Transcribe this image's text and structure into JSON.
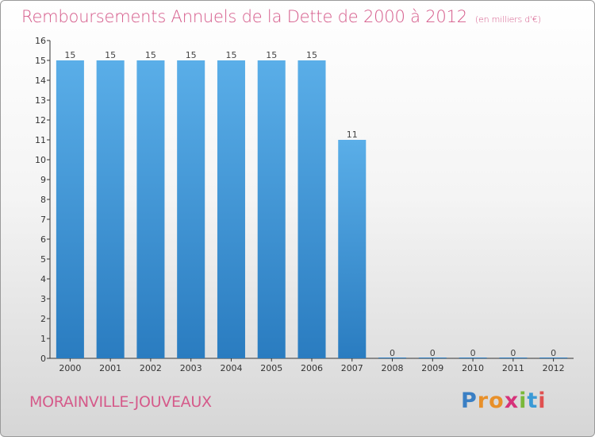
{
  "title": "Remboursements Annuels de la Dette de 2000 à 2012",
  "unit_note": "(en milliers d'€)",
  "commune": "MORAINVILLE-JOUVEAUX",
  "logo": {
    "text": "Proxiti",
    "letters": [
      "P",
      "r",
      "o",
      "x",
      "i",
      "t",
      "i"
    ]
  },
  "colors": {
    "bar_top": "#5aaee8",
    "bar_bottom": "#2a7cc0",
    "title": "#d55a8a"
  },
  "chart_data": {
    "type": "bar",
    "categories": [
      "2000",
      "2001",
      "2002",
      "2003",
      "2004",
      "2005",
      "2006",
      "2007",
      "2008",
      "2009",
      "2010",
      "2011",
      "2012"
    ],
    "values": [
      15,
      15,
      15,
      15,
      15,
      15,
      15,
      11,
      0,
      0,
      0,
      0,
      0
    ],
    "value_labels": [
      "15",
      "15",
      "15",
      "15",
      "15",
      "15",
      "15",
      "11",
      "0",
      "0",
      "0",
      "0",
      "0"
    ],
    "y_ticks": [
      "0",
      "1",
      "2",
      "3",
      "4",
      "5",
      "6",
      "7",
      "8",
      "9",
      "10",
      "11",
      "12",
      "13",
      "14",
      "15",
      "16"
    ],
    "ylim": [
      0,
      16
    ],
    "grid": false
  }
}
